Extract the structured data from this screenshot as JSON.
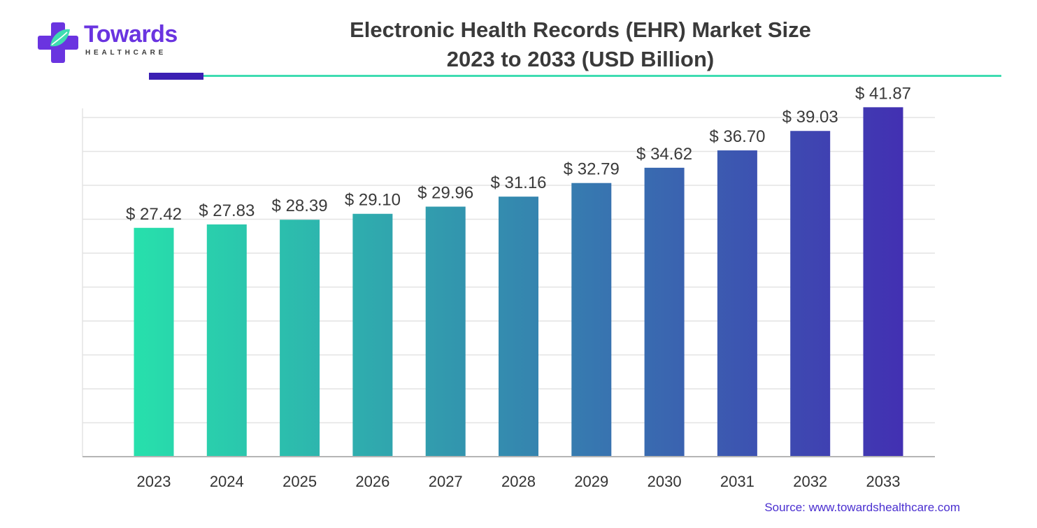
{
  "logo": {
    "wordmark": "Towards",
    "subtitle": "HEALTHCARE",
    "colors": {
      "purple": "#6a34e0",
      "teal": "#3fdcb1"
    }
  },
  "source_text": "Source: www.towardshealthcare.com",
  "colors": {
    "header_rule_dark": "#3b1fb3",
    "header_rule_light": "#3fdcb1",
    "bar_start": "#27e0ac",
    "bar_end": "#4230b2",
    "grid": "#e3e3e3",
    "axis": "#b5b5b5"
  },
  "chart_data": {
    "type": "bar",
    "title": "Electronic Health Records (EHR) Market Size",
    "subtitle": "2023 to 2033 (USD Billion)",
    "xlabel": "",
    "ylabel": "",
    "categories": [
      "2023",
      "2024",
      "2025",
      "2026",
      "2027",
      "2028",
      "2029",
      "2030",
      "2031",
      "2032",
      "2033"
    ],
    "values": [
      27.42,
      27.83,
      28.39,
      29.1,
      29.96,
      31.16,
      32.79,
      34.62,
      36.7,
      39.03,
      41.87
    ],
    "value_labels": [
      "$ 27.42",
      "$ 27.83",
      "$ 28.39",
      "$ 29.10",
      "$ 29.96",
      "$ 31.16",
      "$ 32.79",
      "$ 34.62",
      "$ 36.70",
      "$ 39.03",
      "$ 41.87"
    ],
    "ylim": [
      0,
      45
    ],
    "grid": true,
    "y_tick_labels_shown": false,
    "legend": "none"
  }
}
